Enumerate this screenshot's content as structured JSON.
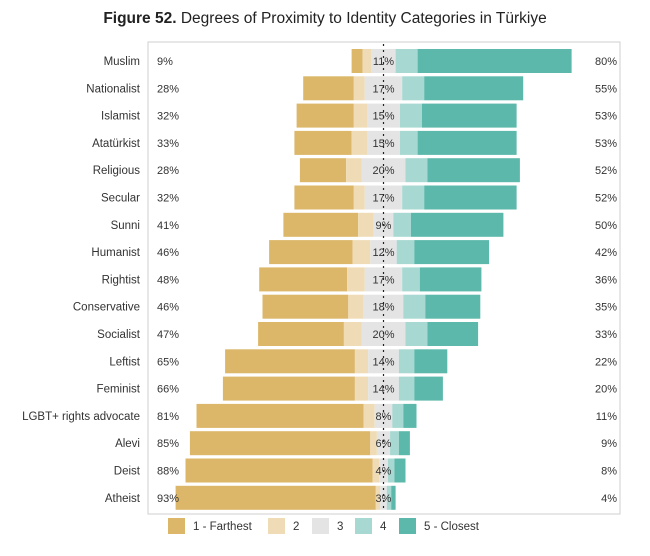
{
  "figure_label": "Figure 52.",
  "title_text": "Degrees of Proximity to Identity Categories in Türkiye",
  "chart_data": {
    "type": "bar",
    "subtype": "diverging-stacked",
    "title": "Figure 52. Degrees of Proximity to Identity Categories in Türkiye",
    "categories": [
      "Muslim",
      "Nationalist",
      "Islamist",
      "Atatürkist",
      "Religious",
      "Secular",
      "Sunni",
      "Humanist",
      "Rightist",
      "Conservative",
      "Socialist",
      "Leftist",
      "Feminist",
      "LGBT+ rights advocate",
      "Alevi",
      "Deist",
      "Atheist"
    ],
    "series": [
      {
        "name": "1 - Farthest",
        "color": "#dcb76a",
        "values": [
          5,
          23,
          26,
          26,
          21,
          27,
          34,
          38,
          40,
          39,
          39,
          59,
          60,
          76,
          82,
          85,
          91
        ]
      },
      {
        "name": "2",
        "color": "#efdcb6",
        "values": [
          4,
          5,
          6,
          7,
          7,
          5,
          7,
          8,
          8,
          7,
          8,
          6,
          6,
          5,
          3,
          3,
          2
        ]
      },
      {
        "name": "3",
        "color": "#e4e4e4",
        "values": [
          11,
          17,
          15,
          15,
          20,
          17,
          9,
          12,
          17,
          18,
          20,
          14,
          14,
          8,
          6,
          4,
          3
        ]
      },
      {
        "name": "4",
        "color": "#a7d8d1",
        "values": [
          10,
          10,
          10,
          8,
          10,
          10,
          8,
          8,
          8,
          10,
          10,
          7,
          7,
          5,
          4,
          3,
          2
        ]
      },
      {
        "name": "5 - Closest",
        "color": "#5bb8ab",
        "values": [
          70,
          45,
          43,
          45,
          42,
          42,
          42,
          34,
          28,
          25,
          23,
          15,
          13,
          6,
          5,
          5,
          2
        ]
      }
    ],
    "left_totals": [
      "9%",
      "28%",
      "32%",
      "33%",
      "28%",
      "32%",
      "41%",
      "46%",
      "48%",
      "46%",
      "47%",
      "65%",
      "66%",
      "81%",
      "85%",
      "88%",
      "93%"
    ],
    "middle_labels": [
      "11%",
      "17%",
      "15%",
      "15%",
      "20%",
      "17%",
      "9%",
      "12%",
      "17%",
      "18%",
      "20%",
      "14%",
      "14%",
      "8%",
      "6%",
      "4%",
      "3%"
    ],
    "right_totals": [
      "80%",
      "55%",
      "53%",
      "53%",
      "52%",
      "52%",
      "50%",
      "42%",
      "36%",
      "35%",
      "33%",
      "22%",
      "20%",
      "11%",
      "9%",
      "8%",
      "4%"
    ],
    "legend": [
      "1 - Farthest",
      "2",
      "3",
      "4",
      "5 - Closest"
    ],
    "legend_position": "bottom"
  }
}
